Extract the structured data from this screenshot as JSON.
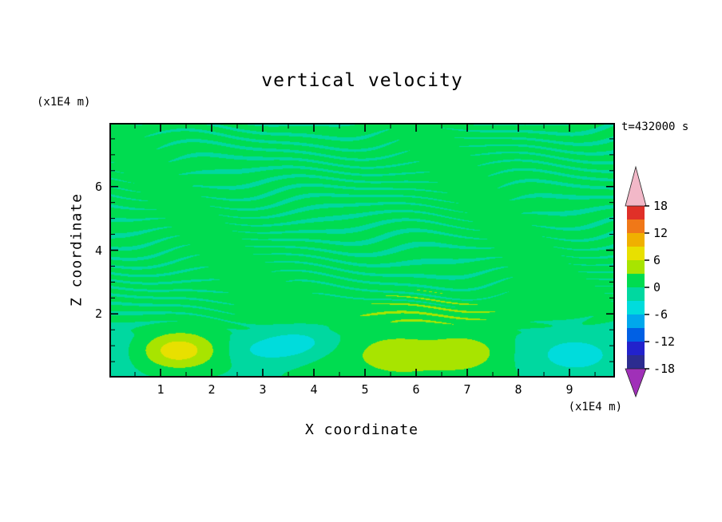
{
  "title": "vertical velocity",
  "annotations": {
    "time_label": "t=432000 s",
    "z_axis_units": "(x1E4 m)",
    "x_axis_units": "(x1E4 m)"
  },
  "axes": {
    "x": {
      "label": "X coordinate",
      "min": 0,
      "max": 9.89,
      "major_ticks": [
        1,
        2,
        3,
        4,
        5,
        6,
        7,
        8,
        9
      ],
      "minor_step": 0.5
    },
    "z": {
      "label": "Z coordinate",
      "min": 0,
      "max": 8.0,
      "major_ticks": [
        2,
        4,
        6
      ],
      "minor_step": 0.5
    }
  },
  "chart_data": {
    "type": "heatmap",
    "subtype": "filled-contour",
    "title": "vertical velocity",
    "xlabel": "X coordinate",
    "ylabel": "Z coordinate",
    "x_units": "x1E4 m",
    "z_units": "x1E4 m",
    "time_annotation": "t=432000 s",
    "x_range": [
      0,
      9.89
    ],
    "z_range": [
      0,
      8.0
    ],
    "contour_interval": 3,
    "levels": [
      -18,
      -15,
      -12,
      -9,
      -6,
      -3,
      0,
      3,
      6,
      9,
      12,
      15,
      18
    ],
    "colors": [
      "#2c2c90",
      "#2222cc",
      "#0060e4",
      "#00a8ec",
      "#00dcdc",
      "#00d8a0",
      "#00dc50",
      "#a8e400",
      "#e8e000",
      "#f0b000",
      "#f07818",
      "#e03028"
    ],
    "under_color": "#a030b8",
    "over_color": "#f2b8c8",
    "colorbar_labels": [
      18,
      12,
      6,
      0,
      -6,
      -12,
      -18
    ],
    "field": {
      "description": "mostly near-zero green field with slightly-negative teal wave streaks above z=2; boundary-layer cells below z=2: updraft +8 at x=1.35, downdrafts -4 near x=3.4 and x=8.9, broad +3 dome x=4.7..7.8 with +5 cores at x=5.55 and x=7.0",
      "base": {
        "bottom": -0.7,
        "top": 0.8
      },
      "envelope": [
        1.25,
        2.05
      ],
      "wave": {
        "amp": 1.6,
        "fz": 20,
        "terms": [
          [
            3.5,
            1.3,
            2.0
          ],
          [
            2.0,
            0.7,
            -1.1
          ],
          [
            1.2,
            2.9,
            0.0
          ]
        ],
        "mod": [
          0.8,
          0.35,
          1.05,
          0.6
        ]
      },
      "blobs": [
        {
          "x": 1.35,
          "z": 0.85,
          "sx": 0.55,
          "sz": 0.42,
          "amp": 8.5
        },
        {
          "x": 3.15,
          "z": 0.85,
          "sx": 0.55,
          "sz": 0.28,
          "amp": -3.6
        },
        {
          "x": 3.75,
          "z": 1.15,
          "sx": 0.5,
          "sz": 0.3,
          "amp": -3.4
        },
        {
          "x": 6.2,
          "z": 0.55,
          "sx": 1.7,
          "sz": 1.05,
          "amp": 3.4
        },
        {
          "x": 5.55,
          "z": 0.75,
          "sx": 0.45,
          "sz": 0.33,
          "amp": 2.9
        },
        {
          "x": 7.0,
          "z": 0.8,
          "sx": 0.5,
          "sz": 0.35,
          "amp": 2.7
        },
        {
          "x": 8.95,
          "z": 0.7,
          "sx": 0.8,
          "sz": 0.55,
          "amp": -4.0
        },
        {
          "x": 0.15,
          "z": 0.9,
          "sx": 0.5,
          "sz": 0.5,
          "amp": -1.2
        }
      ]
    }
  }
}
